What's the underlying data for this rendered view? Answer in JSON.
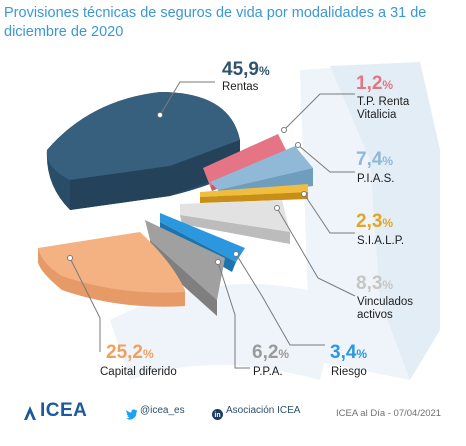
{
  "title": "Provisiones técnicas de seguros de vida por modalidades a 31 de diciembre de 2020",
  "chart_data": {
    "type": "pie",
    "unit": "%",
    "title": "Provisiones técnicas de seguros de vida por modalidades a 31 de diciembre de 2020",
    "slices": [
      {
        "name": "Rentas",
        "value": 45.9,
        "display": "45,9",
        "color": "#2e5470"
      },
      {
        "name": "T.P. Renta Vitalicia",
        "value": 1.2,
        "display": "1,2",
        "color": "#e57484"
      },
      {
        "name": "P.I.A.S.",
        "value": 7.4,
        "display": "7,4",
        "color": "#8fb9d6"
      },
      {
        "name": "S.I.A.L.P.",
        "value": 2.3,
        "display": "2,3",
        "color": "#e3a622"
      },
      {
        "name": "Vinculados activos",
        "value": 8.3,
        "display": "8,3",
        "color": "#d7d7d7"
      },
      {
        "name": "Riesgo",
        "value": 3.4,
        "display": "3,4",
        "color": "#2a97df"
      },
      {
        "name": "P.P.A.",
        "value": 6.2,
        "display": "6,2",
        "color": "#9a9a9a"
      },
      {
        "name": "Capital diferido",
        "value": 25.2,
        "display": "25,2",
        "color": "#f4b182"
      }
    ]
  },
  "labels": {
    "rentas": {
      "value": "45,9",
      "unit": "%",
      "name": "Rentas"
    },
    "tp": {
      "value": "1,2",
      "unit": "%",
      "name_line1": "T.P. Renta",
      "name_line2": "Vitalicia"
    },
    "pias": {
      "value": "7,4",
      "unit": "%",
      "name": "P.I.A.S."
    },
    "sialp": {
      "value": "2,3",
      "unit": "%",
      "name": "S.I.A.L.P."
    },
    "vinc": {
      "value": "8,3",
      "unit": "%",
      "name_line1": "Vinculados",
      "name_line2": "activos"
    },
    "riesgo": {
      "value": "3,4",
      "unit": "%",
      "name": "Riesgo"
    },
    "ppa": {
      "value": "6,2",
      "unit": "%",
      "name": "P.P.A."
    },
    "capital": {
      "value": "25,2",
      "unit": "%",
      "name": "Capital diferido"
    }
  },
  "footer": {
    "logo": "ICEA",
    "twitter": "@icea_es",
    "linkedin": "Asociación ICEA",
    "date": "ICEA al Día - 07/04/2021"
  },
  "colors": {
    "title": "#3b98d3",
    "rentas_pct": "#2e5470",
    "tp_pct": "#e57484",
    "pias_pct": "#8fb9d6",
    "sialp_pct": "#e3a622",
    "vinc_pct": "#c6c6c6",
    "riesgo_pct": "#2a97df",
    "ppa_pct": "#9a9a9a",
    "capital_pct": "#f0a060"
  }
}
